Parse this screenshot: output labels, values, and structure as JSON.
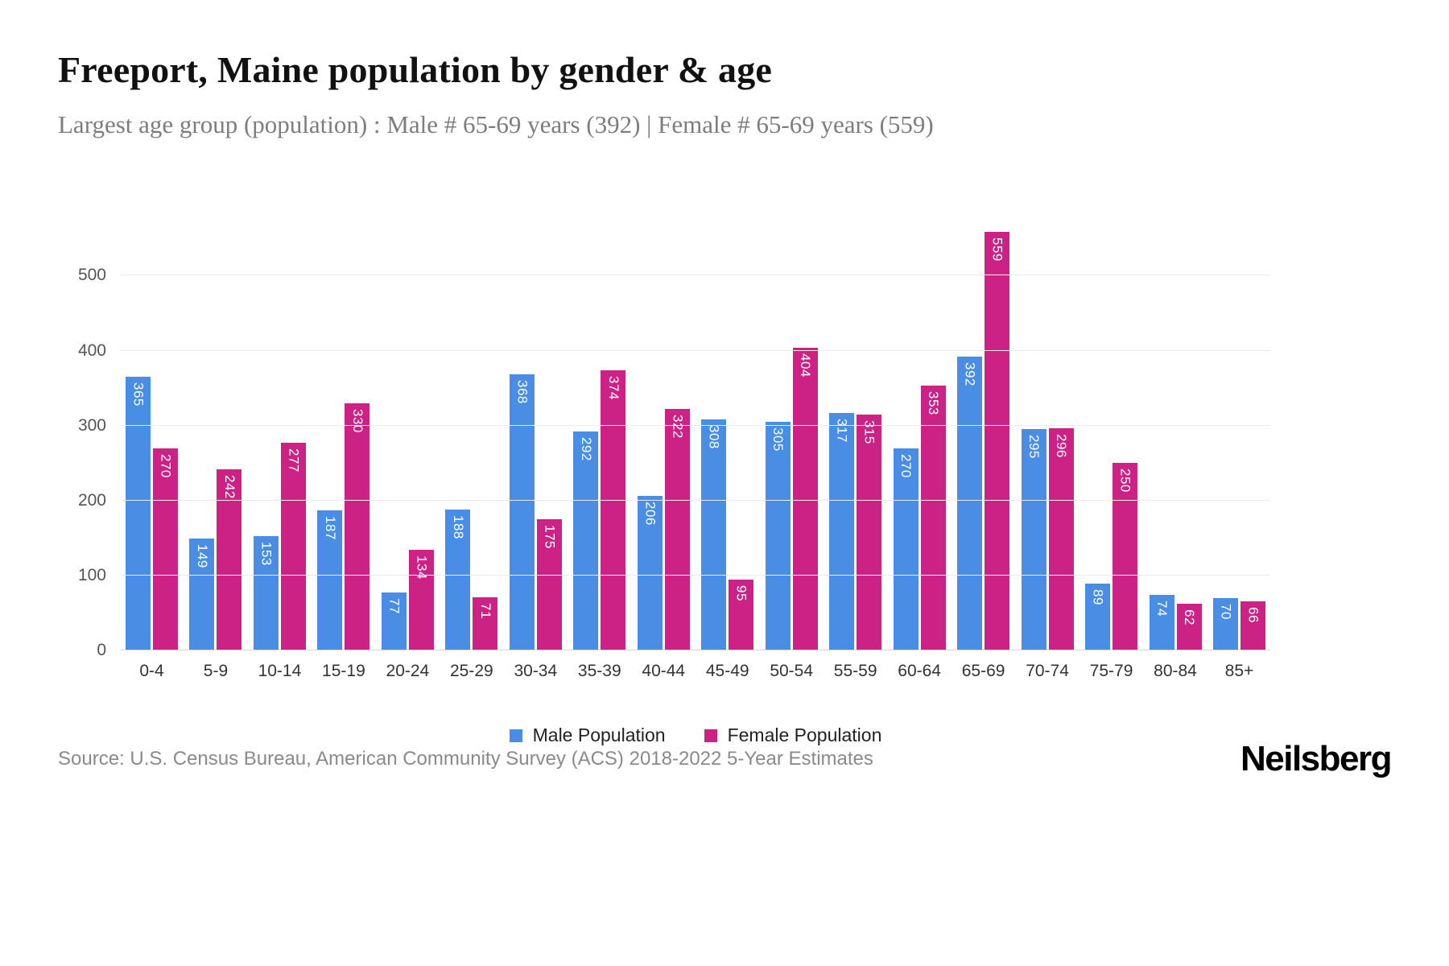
{
  "header": {
    "title": "Freeport, Maine population by gender & age",
    "subtitle": "Largest age group (population) : Male # 65-69 years (392) | Female # 65-69 years (559)"
  },
  "footer": {
    "source": "Source: U.S. Census Bureau, American Community Survey (ACS) 2018-2022 5-Year Estimates",
    "brand": "Neilsberg"
  },
  "chart_data": {
    "type": "bar",
    "title": "Freeport, Maine population by gender & age",
    "categories": [
      "0-4",
      "5-9",
      "10-14",
      "15-19",
      "20-24",
      "25-29",
      "30-34",
      "35-39",
      "40-44",
      "45-49",
      "50-54",
      "55-59",
      "60-64",
      "65-69",
      "70-74",
      "75-79",
      "80-84",
      "85+"
    ],
    "series": [
      {
        "key": "male",
        "name": "Male Population",
        "color": "#4a8de4",
        "values": [
          365,
          149,
          153,
          187,
          77,
          188,
          368,
          292,
          206,
          308,
          305,
          317,
          270,
          392,
          295,
          89,
          74,
          70
        ]
      },
      {
        "key": "female",
        "name": "Female Population",
        "color": "#cc2185",
        "values": [
          270,
          242,
          277,
          330,
          134,
          71,
          175,
          374,
          322,
          95,
          404,
          315,
          353,
          559,
          296,
          250,
          62,
          66
        ]
      }
    ],
    "xlabel": "",
    "ylabel": "",
    "ylim": [
      0,
      580
    ],
    "yticks": [
      0,
      100,
      200,
      300,
      400,
      500
    ],
    "grid": true,
    "legend_position": "bottom",
    "bar_value_labels": "inside-top, rotated vertical, white"
  }
}
